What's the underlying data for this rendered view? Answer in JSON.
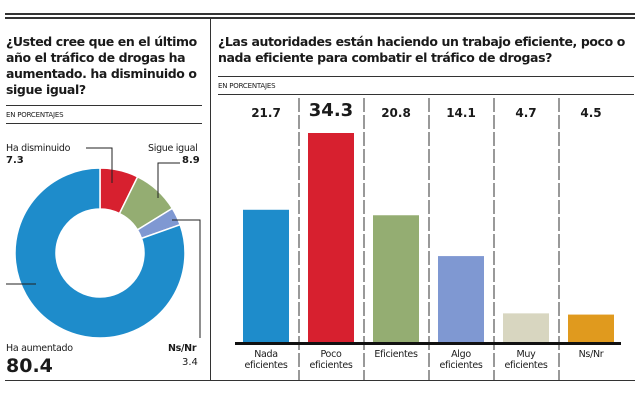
{
  "chart_data": [
    {
      "type": "pie",
      "variant": "donut",
      "title": "¿Usted cree que en el último año el tráfico de drogas ha aumentado. ha disminuido o sigue igual?",
      "subtitle": "EN PORCENTAJES",
      "slices": [
        {
          "label": "Ha disminuido",
          "value": 7.3,
          "color": "#d7202f"
        },
        {
          "label": "Sigue igual",
          "value": 8.9,
          "color": "#94ad72"
        },
        {
          "label": "Ns/Nr",
          "value": 3.4,
          "color": "#7f98d2"
        },
        {
          "label": "Ha aumentado",
          "value": 80.4,
          "color": "#1e8ccb"
        }
      ]
    },
    {
      "type": "bar",
      "title": "¿Las autoridades están haciendo un trabajo eficiente, poco o nada eficiente para combatir el tráfico de drogas?",
      "subtitle": "EN PORCENTAJES",
      "categories": [
        "Nada eficientes",
        "Poco eficientes",
        "Eficientes",
        "Algo eficientes",
        "Muy eficientes",
        "Ns/Nr"
      ],
      "values": [
        21.7,
        34.3,
        20.8,
        14.1,
        4.7,
        4.5
      ],
      "value_labels": [
        "21.7",
        "34.3",
        "20.8",
        "14.1",
        "4.7",
        "4.5"
      ],
      "colors": [
        "#1e8ccb",
        "#d7202f",
        "#94ad72",
        "#7f98d2",
        "#d8d6c0",
        "#e09a1e"
      ],
      "highlight_index": 1,
      "ylim": [
        0,
        34.3
      ]
    }
  ]
}
